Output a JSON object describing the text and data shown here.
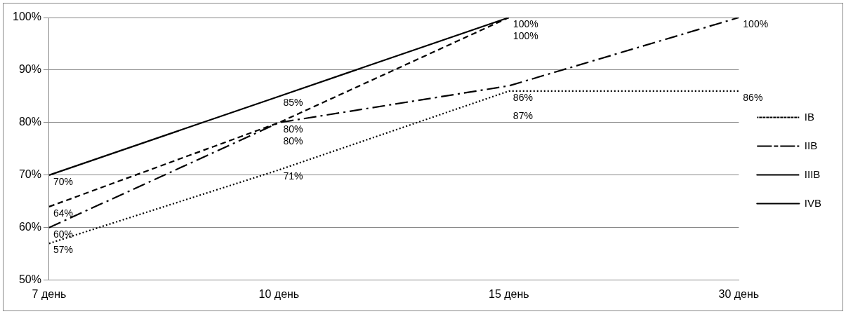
{
  "chart_data": {
    "type": "line",
    "categories": [
      "7 день",
      "10 день",
      "15 день",
      "30 день"
    ],
    "series": [
      {
        "name": "IB",
        "color": "#000000",
        "line_style": "dotted",
        "values": [
          57,
          71,
          86,
          86
        ],
        "value_labels": [
          "57%",
          "71%",
          "86%",
          "86%"
        ]
      },
      {
        "name": "IIB",
        "color": "#000000",
        "line_style": "dashdot",
        "values": [
          60,
          80,
          87,
          100
        ],
        "value_labels": [
          "60%",
          "80%",
          "87%",
          "100%"
        ]
      },
      {
        "name": "IIIB",
        "color": "#000000",
        "line_style": "dashed",
        "values": [
          64,
          80,
          100,
          null
        ],
        "value_labels": [
          "64%",
          "80%",
          "100%",
          null
        ]
      },
      {
        "name": "IVB",
        "color": "#000000",
        "line_style": "solid",
        "values": [
          70,
          85,
          100,
          null
        ],
        "value_labels": [
          "70%",
          "85%",
          "100%",
          null
        ]
      }
    ],
    "ylim": [
      50,
      100
    ],
    "yticks": [
      {
        "value": 50,
        "label": "50%"
      },
      {
        "value": 60,
        "label": "60%"
      },
      {
        "value": 70,
        "label": "70%"
      },
      {
        "value": 80,
        "label": "80%"
      },
      {
        "value": 90,
        "label": "90%"
      },
      {
        "value": 100,
        "label": "100%"
      }
    ],
    "grid": "y",
    "legend": "right",
    "marker": "none"
  }
}
